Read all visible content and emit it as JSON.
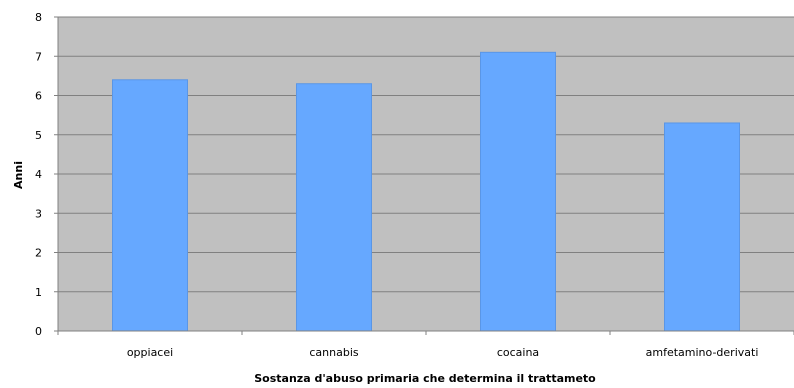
{
  "chart_data": {
    "type": "bar",
    "categories": [
      "oppiacei",
      "cannabis",
      "cocaina",
      "amfetamino-derivati"
    ],
    "values": [
      6.4,
      6.3,
      7.1,
      5.3
    ],
    "xlabel": "Sostanza d'abuso primaria che determina il trattameto",
    "ylabel": "Anni",
    "ylim": [
      0,
      8
    ],
    "yticks": [
      0,
      1,
      2,
      3,
      4,
      5,
      6,
      7,
      8
    ],
    "grid": true,
    "legend": false,
    "colors": {
      "bar": "#66a8ff",
      "bar_edge": "#5a96e6",
      "plot_background": "#c0c0c0",
      "grid": "#808080",
      "axis": "#808080"
    }
  }
}
